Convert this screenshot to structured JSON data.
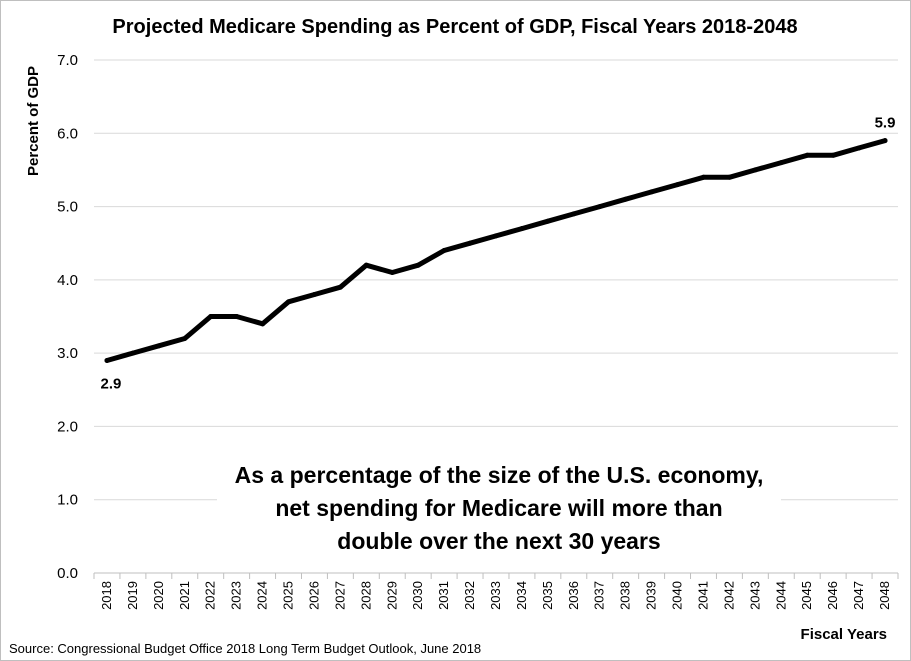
{
  "chart_data": {
    "type": "line",
    "title": "Projected Medicare Spending as Percent of GDP, Fiscal Years 2018-2048",
    "xlabel": "Fiscal Years",
    "ylabel": "Percent of GDP",
    "ylim": [
      0,
      7
    ],
    "yticks": [
      "0.0",
      "1.0",
      "2.0",
      "3.0",
      "4.0",
      "5.0",
      "6.0",
      "7.0"
    ],
    "grid": true,
    "categories": [
      "2018",
      "2019",
      "2020",
      "2021",
      "2022",
      "2023",
      "2024",
      "2025",
      "2026",
      "2027",
      "2028",
      "2029",
      "2030",
      "2031",
      "2032",
      "2033",
      "2034",
      "2035",
      "2036",
      "2037",
      "2038",
      "2039",
      "2040",
      "2041",
      "2042",
      "2043",
      "2044",
      "2045",
      "2046",
      "2047",
      "2048"
    ],
    "series": [
      {
        "values": [
          2.9,
          3.0,
          3.1,
          3.2,
          3.5,
          3.5,
          3.4,
          3.7,
          3.8,
          3.9,
          4.2,
          4.1,
          4.2,
          4.4,
          4.5,
          4.6,
          4.7,
          4.8,
          4.9,
          5.0,
          5.1,
          5.2,
          5.3,
          5.4,
          5.4,
          5.5,
          5.6,
          5.7,
          5.7,
          5.8,
          5.9
        ],
        "color": "#000000"
      }
    ],
    "data_labels": [
      {
        "category": "2018",
        "text": "2.9"
      },
      {
        "category": "2048",
        "text": "5.9"
      }
    ],
    "annotation": [
      "As a percentage of the size of the U.S. economy,",
      "net spending for Medicare will more than",
      "double over the next 30 years"
    ]
  },
  "source": "Source: Congressional Budget Office 2018 Long Term Budget Outlook, June 2018"
}
